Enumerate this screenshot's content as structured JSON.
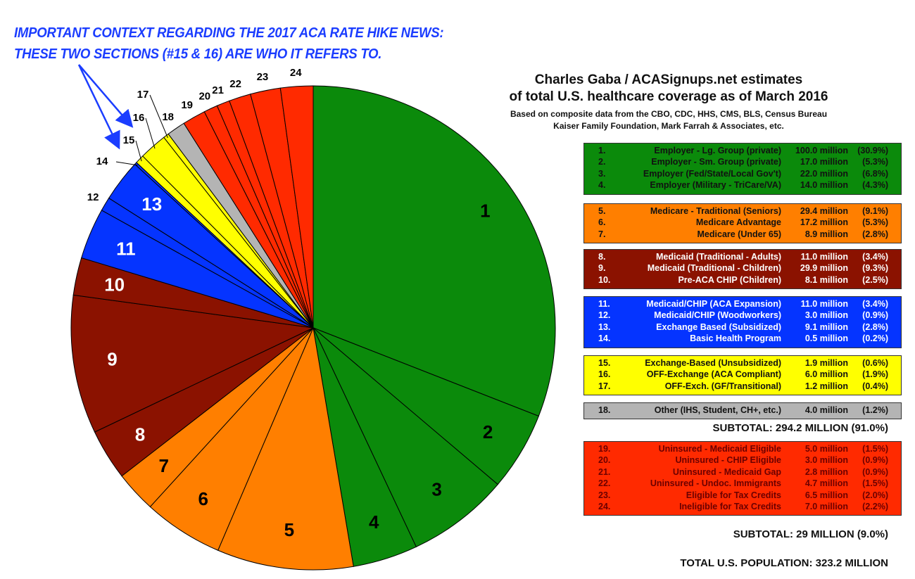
{
  "annotation": {
    "line1": "IMPORTANT CONTEXT REGARDING THE 2017 ACA RATE HIKE NEWS:",
    "line2": "THESE TWO SECTIONS (#15 & 16) ARE WHO IT REFERS TO.",
    "color": "#1b3dff"
  },
  "header": {
    "title_line1": "Charles Gaba / ACASignups.net estimates",
    "title_line2": "of total U.S. healthcare coverage as of March 2016",
    "source_line1": "Based on composite data from the CBO, CDC, HHS, CMS, BLS, Census Bureau",
    "source_line2": "Kaiser Family Foundation, Mark Farrah & Associates, etc."
  },
  "legend": [
    {
      "color": "#0b8a0b",
      "text_color": "#111111",
      "items": [
        {
          "num": "1.",
          "label": "Employer - Lg. Group (private)",
          "value": "100.0 million",
          "pct": "(30.9%)"
        },
        {
          "num": "2.",
          "label": "Employer - Sm. Group (private)",
          "value": "17.0 million",
          "pct": "(5.3%)"
        },
        {
          "num": "3.",
          "label": "Employer (Fed/State/Local Gov't)",
          "value": "22.0 million",
          "pct": "(6.8%)"
        },
        {
          "num": "4.",
          "label": "Employer (Military - TriCare/VA)",
          "value": "14.0 million",
          "pct": "(4.3%)"
        }
      ]
    },
    {
      "color": "#ff7f00",
      "text_color": "#111111",
      "items": [
        {
          "num": "5.",
          "label": "Medicare - Traditional (Seniors)",
          "value": "29.4 million",
          "pct": "(9.1%)"
        },
        {
          "num": "6.",
          "label": "Medicare Advantage",
          "value": "17.2 million",
          "pct": "(5.3%)"
        },
        {
          "num": "7.",
          "label": "Medicare (Under 65)",
          "value": "8.9 million",
          "pct": "(2.8%)"
        }
      ]
    },
    {
      "color": "#8b1200",
      "text_color": "#ffffff",
      "items": [
        {
          "num": "8.",
          "label": "Medicaid (Traditional - Adults)",
          "value": "11.0 million",
          "pct": "(3.4%)"
        },
        {
          "num": "9.",
          "label": "Medicaid (Traditional - Children)",
          "value": "29.9 million",
          "pct": "(9.3%)"
        },
        {
          "num": "10.",
          "label": "Pre-ACA CHIP (Children)",
          "value": "8.1 million",
          "pct": "(2.5%)"
        }
      ]
    },
    {
      "color": "#0534ff",
      "text_color": "#ffffff",
      "items": [
        {
          "num": "11.",
          "label": "Medicaid/CHIP (ACA Expansion)",
          "value": "11.0 million",
          "pct": "(3.4%)"
        },
        {
          "num": "12.",
          "label": "Medicaid/CHIP (Woodworkers)",
          "value": "3.0 million",
          "pct": "(0.9%)"
        },
        {
          "num": "13.",
          "label": "Exchange Based (Subsidized)",
          "value": "9.1 million",
          "pct": "(2.8%)"
        },
        {
          "num": "14.",
          "label": "Basic Health Program",
          "value": "0.5 million",
          "pct": "(0.2%)"
        }
      ]
    },
    {
      "color": "#ffff00",
      "text_color": "#111111",
      "items": [
        {
          "num": "15.",
          "label": "Exchange-Based (Unsubsidized)",
          "value": "1.9 million",
          "pct": "(0.6%)"
        },
        {
          "num": "16.",
          "label": "OFF-Exchange (ACA Compliant)",
          "value": "6.0 million",
          "pct": "(1.9%)"
        },
        {
          "num": "17.",
          "label": "OFF-Exch. (GF/Transitional)",
          "value": "1.2 million",
          "pct": "(0.4%)"
        }
      ]
    },
    {
      "color": "#b4b4b4",
      "text_color": "#111111",
      "items": [
        {
          "num": "18.",
          "label": "Other (IHS, Student, CH+, etc.)",
          "value": "4.0 million",
          "pct": "(1.2%)"
        }
      ]
    },
    {
      "color": "#ff2a00",
      "text_color": "#6b0000",
      "items": [
        {
          "num": "19.",
          "label": "Uninsured - Medicaid Eligible",
          "value": "5.0 million",
          "pct": "(1.5%)"
        },
        {
          "num": "20.",
          "label": "Uninsured - CHIP Eligible",
          "value": "3.0 million",
          "pct": "(0.9%)"
        },
        {
          "num": "21.",
          "label": "Uninsured - Medicaid Gap",
          "value": "2.8 million",
          "pct": "(0.9%)"
        },
        {
          "num": "22.",
          "label": "Uninsured - Undoc. Immigrants",
          "value": "4.7 million",
          "pct": "(1.5%)"
        },
        {
          "num": "23.",
          "label": "Eligible for Tax Credits",
          "value": "6.5 million",
          "pct": "(2.0%)"
        },
        {
          "num": "24.",
          "label": "Ineligible for Tax Credits",
          "value": "7.0 million",
          "pct": "(2.2%)"
        }
      ]
    }
  ],
  "totals": {
    "insured_subtotal": "SUBTOTAL: 294.2 MILLION (91.0%)",
    "uninsured_subtotal": "SUBTOTAL: 29 MILLION (9.0%)",
    "total_population": "TOTAL U.S. POPULATION: 323.2 MILLION"
  },
  "chart_data": {
    "type": "pie",
    "start": "12 o'clock, clockwise",
    "units": "million people",
    "categories": [
      "1",
      "2",
      "3",
      "4",
      "5",
      "6",
      "7",
      "8",
      "9",
      "10",
      "11",
      "12",
      "13",
      "14",
      "15",
      "16",
      "17",
      "18",
      "19",
      "20",
      "21",
      "22",
      "23",
      "24"
    ],
    "values": [
      100.0,
      17.0,
      22.0,
      14.0,
      29.4,
      17.2,
      8.9,
      11.0,
      29.9,
      8.1,
      11.0,
      3.0,
      9.1,
      0.5,
      1.9,
      6.0,
      1.2,
      4.0,
      5.0,
      3.0,
      2.8,
      4.7,
      6.5,
      7.0
    ],
    "colors": [
      "#0b8a0b",
      "#0b8a0b",
      "#0b8a0b",
      "#0b8a0b",
      "#ff7f00",
      "#ff7f00",
      "#ff7f00",
      "#8b1200",
      "#8b1200",
      "#8b1200",
      "#0534ff",
      "#0534ff",
      "#0534ff",
      "#0534ff",
      "#ffff00",
      "#ffff00",
      "#ffff00",
      "#b4b4b4",
      "#ff2a00",
      "#ff2a00",
      "#ff2a00",
      "#ff2a00",
      "#ff2a00",
      "#ff2a00"
    ]
  }
}
